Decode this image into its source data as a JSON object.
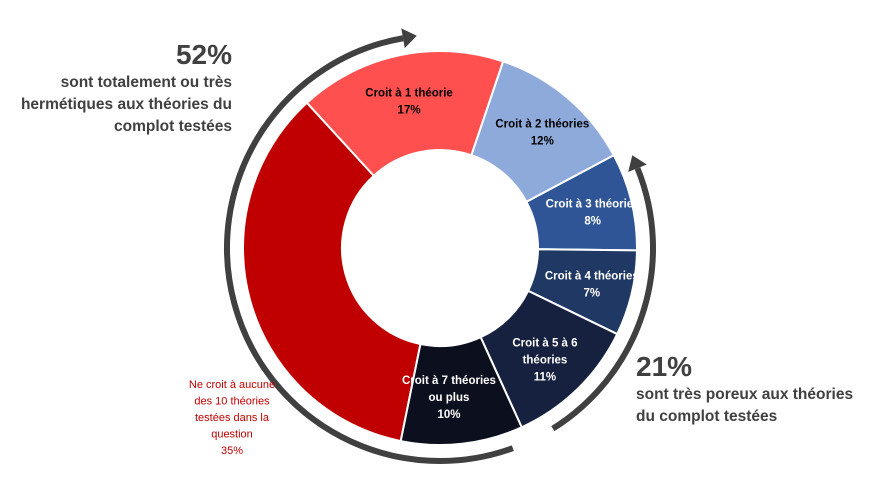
{
  "chart_data": {
    "type": "pie",
    "categories": [
      "Ne croit à aucune des 10 théories testées dans la question",
      "Croit à 1 théorie",
      "Croit à 2 théories",
      "Croit à 3 théories",
      "Croit à 4 théories",
      "Croit à 5 à 6 théories",
      "Croit à 7 théories ou plus"
    ],
    "values": [
      35,
      17,
      12,
      8,
      7,
      11,
      10
    ],
    "value_labels": [
      "35%",
      "17%",
      "12%",
      "8%",
      "7%",
      "11%",
      "10%"
    ],
    "label_lines": [
      [
        "Ne croit à aucune",
        "des 10 théories",
        "testées dans la",
        "question",
        "35%"
      ],
      [
        "Croit à 1 théorie",
        "17%"
      ],
      [
        "Croit à 2 théories",
        "12%"
      ],
      [
        "Croit à 3 théories",
        "8%"
      ],
      [
        "Croit à 4 théories",
        "7%"
      ],
      [
        "Croit à 5 à 6",
        "théories",
        "11%"
      ],
      [
        "Croit à 7 théories",
        "ou plus",
        "10%"
      ]
    ],
    "colors": [
      "#c00000",
      "#ff5050",
      "#8eaadb",
      "#2f5597",
      "#203864",
      "#16213f",
      "#0b0f1e"
    ],
    "label_colors": [
      "#c00000",
      "#000000",
      "#000000",
      "#ffffff",
      "#ffffff",
      "#ffffff",
      "#ffffff"
    ],
    "donut": true,
    "start": "bottom, clockwise",
    "legend": "none"
  },
  "callouts": {
    "left": {
      "percent": "52%",
      "text": "sont totalement ou très hermétiques aux théories du complot testées"
    },
    "right": {
      "percent": "21%",
      "text": "sont très poreux aux théories du complot testées"
    }
  },
  "arrow_color": "#404040"
}
